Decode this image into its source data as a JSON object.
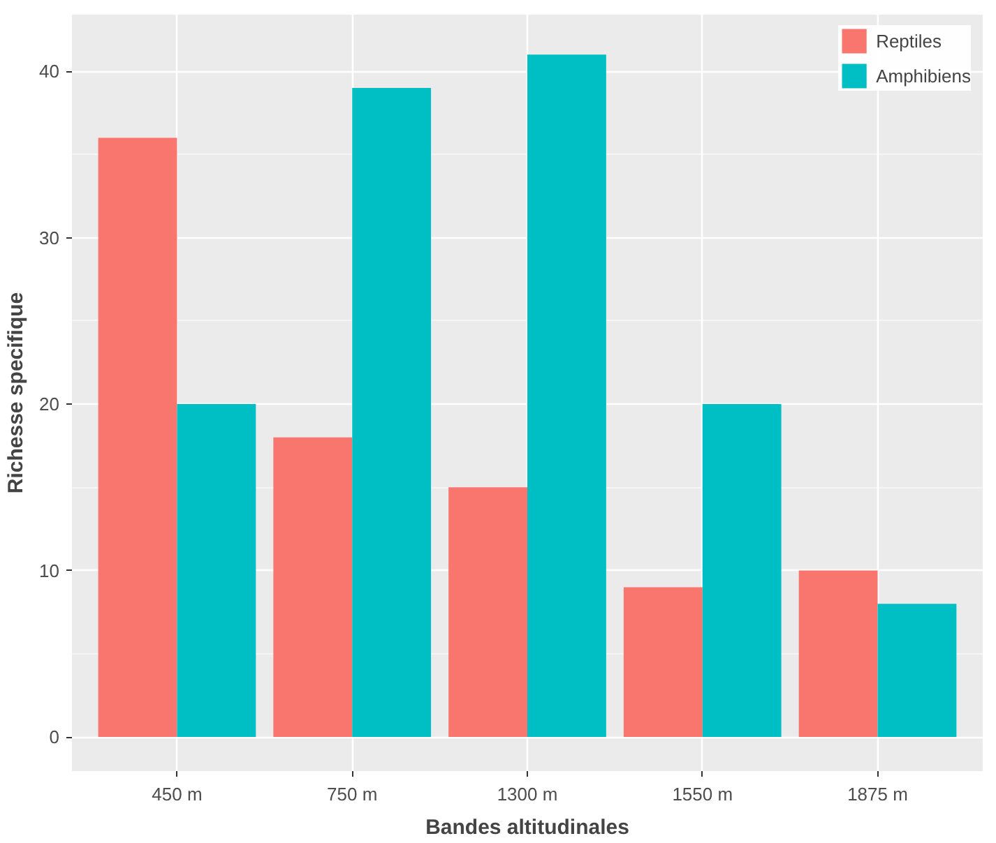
{
  "chart_data": {
    "type": "bar",
    "xlabel": "Bandes altitudinales",
    "ylabel": "Richesse specifique",
    "categories": [
      "450 m",
      "750 m",
      "1300 m",
      "1550 m",
      "1875 m"
    ],
    "series": [
      {
        "name": "Reptiles",
        "color": "#f8766d",
        "values": [
          36,
          18,
          15,
          9,
          10
        ]
      },
      {
        "name": "Amphibiens",
        "color": "#00bfc4",
        "values": [
          20,
          39,
          41,
          20,
          8
        ]
      }
    ],
    "ylim": [
      -2.05,
      43.4
    ],
    "yticks": [
      0,
      10,
      20,
      30,
      40
    ],
    "grid": true,
    "legend": "top right"
  }
}
